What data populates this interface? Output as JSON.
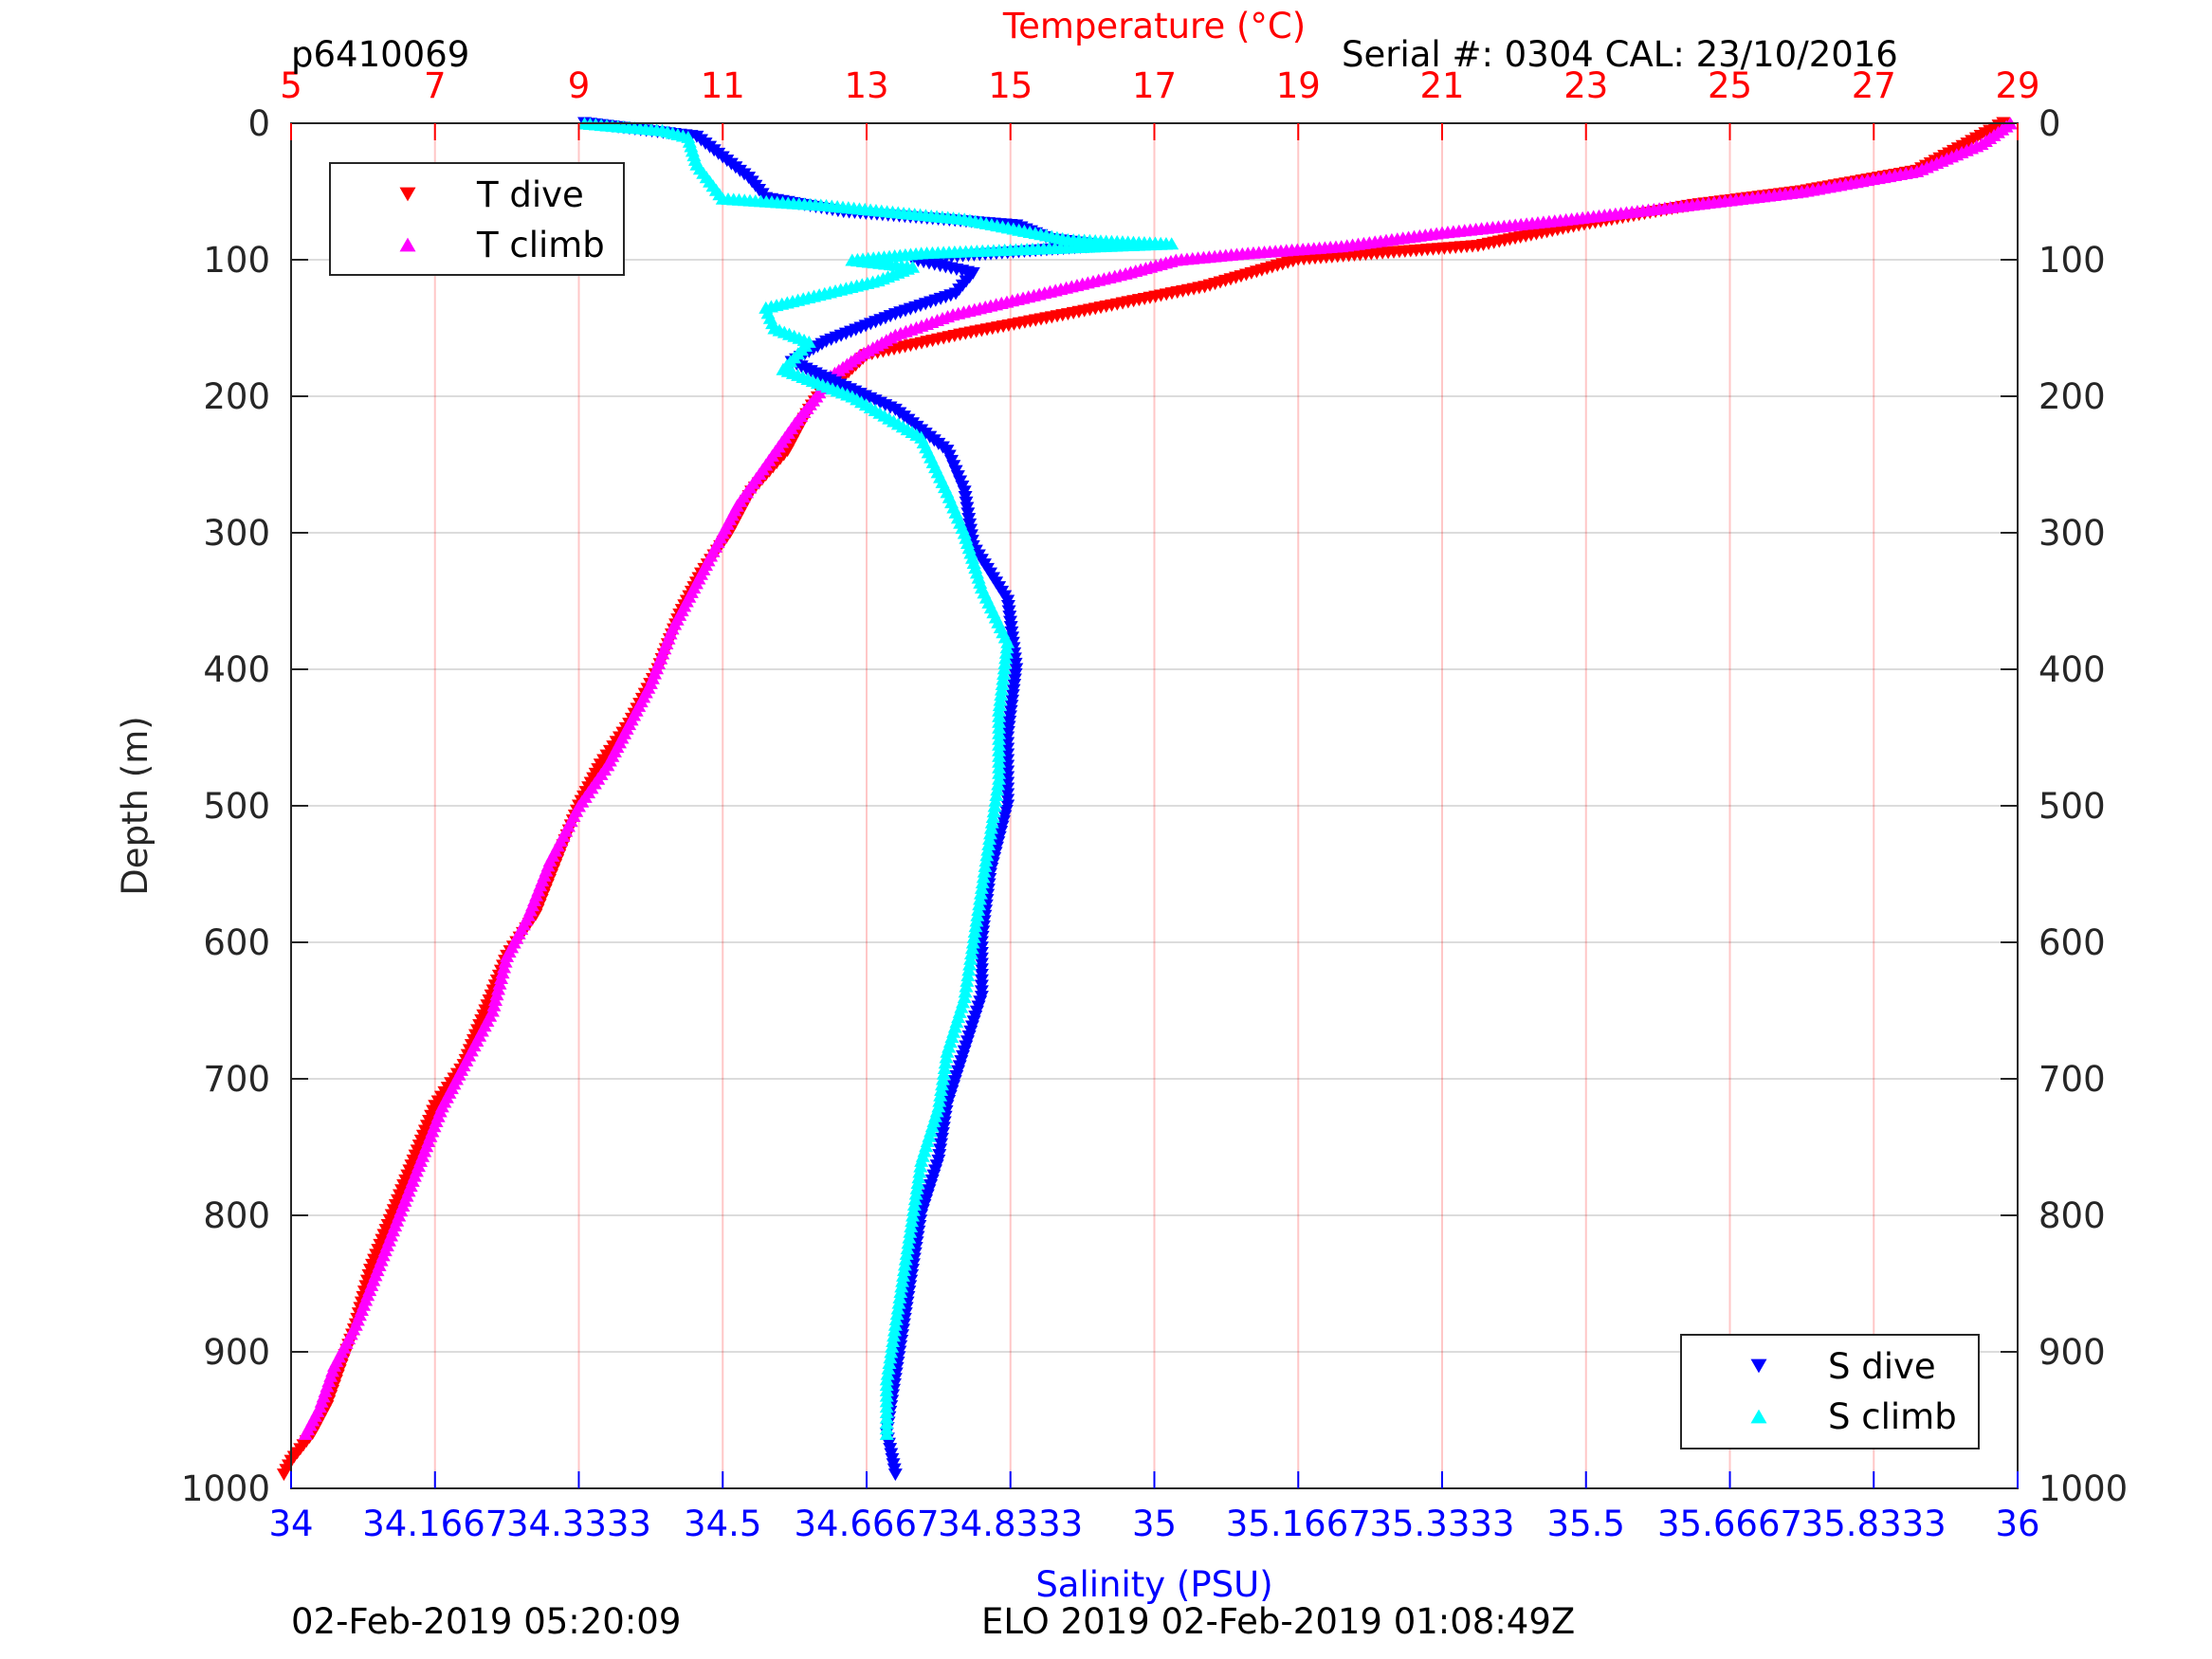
{
  "header": {
    "plot_id": "p6410069",
    "serial": "Serial #: 0304  CAL: 23/10/2016"
  },
  "footer": {
    "left": "02-Feb-2019 05:20:09",
    "center": "ELO 2019 02-Feb-2019 01:08:49Z"
  },
  "chart_data": {
    "type": "scatter",
    "y_axis": {
      "label": "Depth (m)",
      "range": [
        0,
        1000
      ],
      "reversed": true,
      "ticks": [
        "0",
        "100",
        "200",
        "300",
        "400",
        "500",
        "600",
        "700",
        "800",
        "900",
        "1000"
      ]
    },
    "temperature_axis": {
      "label": "Temperature (°C)",
      "range": [
        5,
        29
      ],
      "position": "top",
      "color": "#ff0000",
      "ticks": [
        "5",
        "7",
        "9",
        "11",
        "13",
        "15",
        "17",
        "19",
        "21",
        "23",
        "25",
        "27",
        "29"
      ]
    },
    "salinity_axis": {
      "label": "Salinity (PSU)",
      "range": [
        34,
        36
      ],
      "position": "bottom",
      "color": "#0000ff",
      "ticks": [
        "34",
        "34.1667",
        "34.3333",
        "34.5",
        "34.6667",
        "34.8333",
        "35",
        "35.1667",
        "35.3333",
        "35.5",
        "35.6667",
        "35.8333",
        "36"
      ]
    },
    "grid": true,
    "legends": [
      {
        "placement": "top-left",
        "entries": [
          {
            "label": "T dive",
            "marker": "triangle-down",
            "color": "#ff0000"
          },
          {
            "label": "T climb",
            "marker": "triangle-up",
            "color": "#ff00ff"
          }
        ]
      },
      {
        "placement": "bottom-right",
        "entries": [
          {
            "label": "S dive",
            "marker": "triangle-down",
            "color": "#0000ff"
          },
          {
            "label": "S climb",
            "marker": "triangle-up",
            "color": "#00ffff"
          }
        ]
      }
    ],
    "series": [
      {
        "name": "T dive",
        "axis": "temperature",
        "marker": "triangle-down",
        "color": "#ff0000",
        "points": [
          [
            28.8,
            0
          ],
          [
            28.3,
            15
          ],
          [
            27.6,
            35
          ],
          [
            26.0,
            50
          ],
          [
            24.5,
            60
          ],
          [
            22.9,
            75
          ],
          [
            21.5,
            90
          ],
          [
            19.0,
            100
          ],
          [
            17.7,
            120
          ],
          [
            15.8,
            140
          ],
          [
            14.3,
            155
          ],
          [
            13.0,
            170
          ],
          [
            12.7,
            185
          ],
          [
            12.4,
            195
          ],
          [
            12.2,
            210
          ],
          [
            11.9,
            240
          ],
          [
            11.4,
            270
          ],
          [
            11.1,
            300
          ],
          [
            10.7,
            330
          ],
          [
            10.4,
            360
          ],
          [
            10.1,
            400
          ],
          [
            9.7,
            440
          ],
          [
            9.3,
            470
          ],
          [
            9.0,
            500
          ],
          [
            8.7,
            540
          ],
          [
            8.4,
            580
          ],
          [
            8.0,
            610
          ],
          [
            7.7,
            650
          ],
          [
            7.4,
            690
          ],
          [
            7.0,
            720
          ],
          [
            6.7,
            760
          ],
          [
            6.4,
            800
          ],
          [
            6.1,
            840
          ],
          [
            5.9,
            880
          ],
          [
            5.7,
            910
          ],
          [
            5.5,
            940
          ],
          [
            5.3,
            960
          ],
          [
            5.0,
            980
          ],
          [
            4.9,
            990
          ]
        ]
      },
      {
        "name": "T climb",
        "axis": "temperature",
        "marker": "triangle-up",
        "color": "#ff00ff",
        "points": [
          [
            28.9,
            0
          ],
          [
            28.5,
            15
          ],
          [
            27.6,
            35
          ],
          [
            26.0,
            50
          ],
          [
            24.4,
            60
          ],
          [
            22.8,
            70
          ],
          [
            21.0,
            80
          ],
          [
            19.6,
            90
          ],
          [
            18.3,
            95
          ],
          [
            17.3,
            100
          ],
          [
            16.6,
            110
          ],
          [
            15.4,
            125
          ],
          [
            14.2,
            140
          ],
          [
            13.4,
            155
          ],
          [
            12.9,
            170
          ],
          [
            12.5,
            185
          ],
          [
            12.3,
            200
          ],
          [
            12.0,
            220
          ],
          [
            11.6,
            250
          ],
          [
            11.2,
            280
          ],
          [
            10.9,
            310
          ],
          [
            10.6,
            340
          ],
          [
            10.3,
            370
          ],
          [
            10.0,
            410
          ],
          [
            9.7,
            440
          ],
          [
            9.4,
            470
          ],
          [
            9.0,
            500
          ],
          [
            8.6,
            540
          ],
          [
            8.3,
            580
          ],
          [
            8.0,
            610
          ],
          [
            7.8,
            650
          ],
          [
            7.4,
            690
          ],
          [
            7.1,
            720
          ],
          [
            6.8,
            760
          ],
          [
            6.5,
            800
          ],
          [
            6.2,
            840
          ],
          [
            5.9,
            880
          ],
          [
            5.6,
            910
          ],
          [
            5.4,
            940
          ],
          [
            5.2,
            960
          ]
        ]
      },
      {
        "name": "S dive",
        "axis": "salinity",
        "marker": "triangle-down",
        "color": "#0000ff",
        "points": [
          [
            34.34,
            0
          ],
          [
            34.47,
            10
          ],
          [
            34.5,
            25
          ],
          [
            34.53,
            40
          ],
          [
            34.55,
            55
          ],
          [
            34.64,
            65
          ],
          [
            34.84,
            75
          ],
          [
            34.88,
            85
          ],
          [
            34.94,
            90
          ],
          [
            34.72,
            100
          ],
          [
            34.79,
            110
          ],
          [
            34.77,
            125
          ],
          [
            34.7,
            140
          ],
          [
            34.62,
            160
          ],
          [
            34.58,
            175
          ],
          [
            34.63,
            190
          ],
          [
            34.7,
            210
          ],
          [
            34.76,
            240
          ],
          [
            34.78,
            270
          ],
          [
            34.79,
            310
          ],
          [
            34.83,
            350
          ],
          [
            34.84,
            400
          ],
          [
            34.83,
            450
          ],
          [
            34.83,
            500
          ],
          [
            34.81,
            550
          ],
          [
            34.8,
            600
          ],
          [
            34.8,
            640
          ],
          [
            34.78,
            680
          ],
          [
            34.76,
            720
          ],
          [
            34.75,
            760
          ],
          [
            34.73,
            800
          ],
          [
            34.72,
            840
          ],
          [
            34.71,
            880
          ],
          [
            34.7,
            920
          ],
          [
            34.69,
            960
          ],
          [
            34.7,
            990
          ]
        ]
      },
      {
        "name": "S climb",
        "axis": "salinity",
        "marker": "triangle-up",
        "color": "#00ffff",
        "points": [
          [
            34.34,
            0
          ],
          [
            34.43,
            5
          ],
          [
            34.46,
            10
          ],
          [
            34.47,
            30
          ],
          [
            34.5,
            55
          ],
          [
            34.62,
            60
          ],
          [
            34.78,
            70
          ],
          [
            34.9,
            85
          ],
          [
            35.02,
            88
          ],
          [
            34.73,
            95
          ],
          [
            34.65,
            100
          ],
          [
            34.72,
            105
          ],
          [
            34.68,
            115
          ],
          [
            34.55,
            135
          ],
          [
            34.56,
            150
          ],
          [
            34.6,
            160
          ],
          [
            34.57,
            180
          ],
          [
            34.65,
            200
          ],
          [
            34.73,
            230
          ],
          [
            34.76,
            270
          ],
          [
            34.78,
            300
          ],
          [
            34.8,
            340
          ],
          [
            34.83,
            380
          ],
          [
            34.82,
            430
          ],
          [
            34.82,
            480
          ],
          [
            34.81,
            520
          ],
          [
            34.8,
            560
          ],
          [
            34.79,
            600
          ],
          [
            34.78,
            640
          ],
          [
            34.76,
            680
          ],
          [
            34.75,
            720
          ],
          [
            34.73,
            760
          ],
          [
            34.72,
            800
          ],
          [
            34.71,
            840
          ],
          [
            34.7,
            880
          ],
          [
            34.69,
            920
          ],
          [
            34.69,
            960
          ]
        ]
      }
    ]
  }
}
